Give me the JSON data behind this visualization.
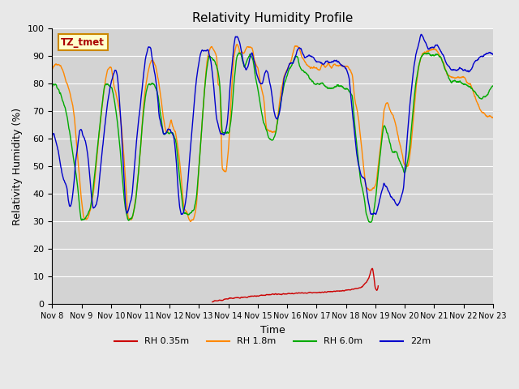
{
  "title": "Relativity Humidity Profile",
  "xlabel": "Time",
  "ylabel": "Relativity Humidity (%)",
  "ylim": [
    0,
    100
  ],
  "yticks": [
    0,
    10,
    20,
    30,
    40,
    50,
    60,
    70,
    80,
    90,
    100
  ],
  "background_color": "#e8e8e8",
  "plot_bg_color": "#d3d3d3",
  "annotation_text": "TZ_tmet",
  "annotation_bg": "#ffffcc",
  "annotation_border": "#cc8800",
  "annotation_text_color": "#aa0000",
  "legend_entries": [
    "RH 0.35m",
    "RH 1.8m",
    "RH 6.0m",
    "22m"
  ],
  "colors": {
    "RH_035": "#cc0000",
    "RH_18": "#ff8800",
    "RH_60": "#00aa00",
    "RH_22": "#0000cc"
  },
  "xtick_labels": [
    "Nov 8",
    "Nov 9",
    "Nov 10",
    "Nov 11",
    "Nov 12",
    "Nov 13",
    "Nov 14",
    "Nov 15",
    "Nov 16",
    "Nov 17",
    "Nov 18",
    "Nov 19",
    "Nov 20",
    "Nov 21",
    "Nov 22",
    "Nov 23"
  ],
  "figsize": [
    6.4,
    4.8
  ],
  "dpi": 100
}
